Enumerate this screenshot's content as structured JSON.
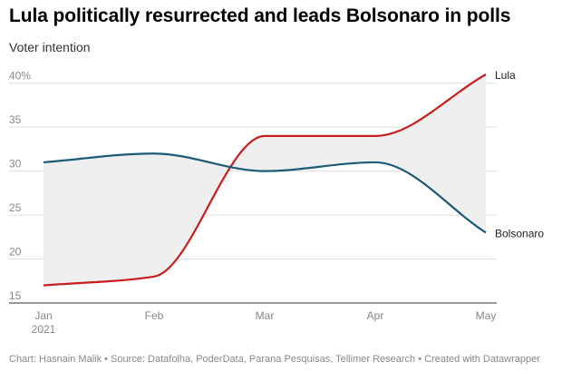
{
  "header": {
    "title": "Lula politically resurrected and leads Bolsonaro in polls",
    "subtitle": "Voter intention"
  },
  "footer": {
    "text": "Chart: Hasnain Malik • Source: Datafolha, PoderData, Parana Pesquisas, Tellimer Research • Created with Datawrapper"
  },
  "colors": {
    "lula": "#c71e1d",
    "bolsonaro": "#1d5a78",
    "range_fill": "#efefef",
    "grid": "#dddddd"
  },
  "chart_data": {
    "type": "line",
    "title": "Lula politically resurrected and leads Bolsonaro in polls",
    "subtitle": "Voter intention",
    "x": [
      "Jan 2021",
      "Feb",
      "Mar",
      "Apr",
      "May"
    ],
    "x_tick_labels": [
      {
        "line1": "Jan",
        "line2": "2021"
      },
      {
        "line1": "Feb",
        "line2": ""
      },
      {
        "line1": "Mar",
        "line2": ""
      },
      {
        "line1": "Apr",
        "line2": ""
      },
      {
        "line1": "May",
        "line2": ""
      }
    ],
    "y_ticks": [
      "40%",
      "35",
      "30",
      "25",
      "20",
      "15"
    ],
    "y_tick_values": [
      40,
      35,
      30,
      25,
      20,
      15
    ],
    "ylim": [
      15,
      41
    ],
    "grid": true,
    "area_between_series": true,
    "series": [
      {
        "name": "Lula",
        "values": [
          17,
          18,
          34,
          34,
          41
        ]
      },
      {
        "name": "Bolsonaro",
        "values": [
          31,
          32,
          30,
          31,
          23
        ]
      }
    ]
  }
}
